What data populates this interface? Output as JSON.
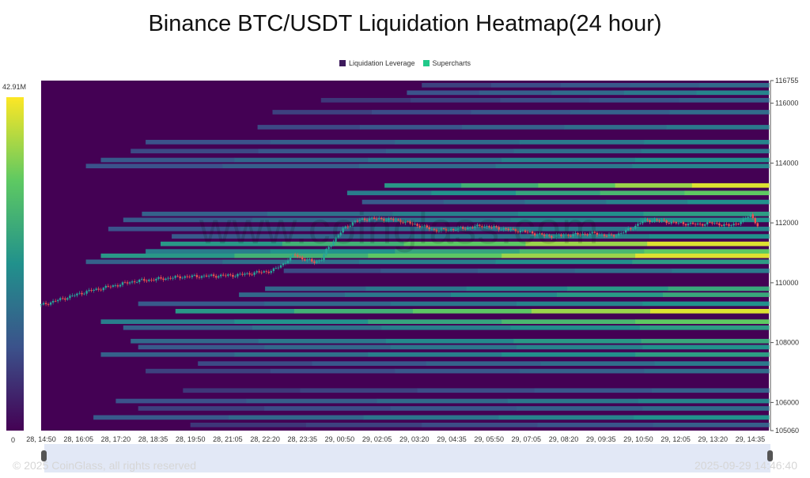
{
  "chart_data": {
    "type": "heatmap",
    "title": "Binance BTC/USDT Liquidation Heatmap(24 hour)",
    "legend": [
      {
        "label": "Liquidation Leverage",
        "color": "#3d1a5c"
      },
      {
        "label": "Supercharts",
        "color": "#21c98a"
      }
    ],
    "colorbar": {
      "max_label": "42.91M",
      "min_label": "0"
    },
    "background_color": "#440154",
    "y_ticks": [
      116755,
      116000,
      114000,
      112000,
      110000,
      108000,
      106000,
      105060
    ],
    "ylim": [
      105060,
      116755
    ],
    "x_ticks": [
      "28, 14:50",
      "28, 16:05",
      "28, 17:20",
      "28, 18:35",
      "28, 19:50",
      "28, 21:05",
      "28, 22:20",
      "28, 23:35",
      "29, 00:50",
      "29, 02:05",
      "29, 03:20",
      "29, 04:35",
      "29, 05:50",
      "29, 07:05",
      "29, 08:20",
      "29, 09:35",
      "29, 10:50",
      "29, 12:05",
      "29, 13:20",
      "29, 14:35"
    ],
    "heat_bands": [
      {
        "price": 116600,
        "start": 10.2,
        "intensity": 0.35
      },
      {
        "price": 116350,
        "start": 9.8,
        "intensity": 0.45
      },
      {
        "price": 116100,
        "start": 7.5,
        "intensity": 0.3
      },
      {
        "price": 115700,
        "start": 6.2,
        "intensity": 0.35
      },
      {
        "price": 115200,
        "start": 5.8,
        "intensity": 0.4
      },
      {
        "price": 114700,
        "start": 2.8,
        "intensity": 0.45
      },
      {
        "price": 114400,
        "start": 2.4,
        "intensity": 0.4
      },
      {
        "price": 114100,
        "start": 1.6,
        "intensity": 0.5
      },
      {
        "price": 113900,
        "start": 1.2,
        "intensity": 0.45
      },
      {
        "price": 113250,
        "start": 9.2,
        "intensity": 0.95
      },
      {
        "price": 113000,
        "start": 8.2,
        "intensity": 0.75
      },
      {
        "price": 112700,
        "start": 8.6,
        "intensity": 0.5
      },
      {
        "price": 112300,
        "start": 2.7,
        "intensity": 0.55
      },
      {
        "price": 112100,
        "start": 2.2,
        "intensity": 0.5
      },
      {
        "price": 111800,
        "start": 1.8,
        "intensity": 0.45
      },
      {
        "price": 111550,
        "start": 3.5,
        "intensity": 0.5
      },
      {
        "price": 111300,
        "start": 3.2,
        "intensity": 0.95
      },
      {
        "price": 111050,
        "start": 2.8,
        "intensity": 0.75
      },
      {
        "price": 110900,
        "start": 1.6,
        "intensity": 0.95
      },
      {
        "price": 110700,
        "start": 1.2,
        "intensity": 0.55
      },
      {
        "price": 110400,
        "start": 6.5,
        "intensity": 0.4
      },
      {
        "price": 109800,
        "start": 6.0,
        "intensity": 0.6
      },
      {
        "price": 109600,
        "start": 5.3,
        "intensity": 0.6
      },
      {
        "price": 109300,
        "start": 2.6,
        "intensity": 0.5
      },
      {
        "price": 109050,
        "start": 3.6,
        "intensity": 0.95
      },
      {
        "price": 108700,
        "start": 1.6,
        "intensity": 0.75
      },
      {
        "price": 108500,
        "start": 2.2,
        "intensity": 0.55
      },
      {
        "price": 108050,
        "start": 2.4,
        "intensity": 0.6
      },
      {
        "price": 107850,
        "start": 2.6,
        "intensity": 0.5
      },
      {
        "price": 107600,
        "start": 1.6,
        "intensity": 0.55
      },
      {
        "price": 107300,
        "start": 4.2,
        "intensity": 0.4
      },
      {
        "price": 107050,
        "start": 2.8,
        "intensity": 0.35
      },
      {
        "price": 106400,
        "start": 3.8,
        "intensity": 0.3
      },
      {
        "price": 106050,
        "start": 2.0,
        "intensity": 0.45
      },
      {
        "price": 105800,
        "start": 2.6,
        "intensity": 0.35
      },
      {
        "price": 105500,
        "start": 1.4,
        "intensity": 0.5
      },
      {
        "price": 105250,
        "start": 4.0,
        "intensity": 0.3
      }
    ],
    "price_path": [
      [
        0,
        109250
      ],
      [
        1.2,
        109700
      ],
      [
        2.5,
        110050
      ],
      [
        3.8,
        110200
      ],
      [
        5.2,
        110250
      ],
      [
        6.2,
        110400
      ],
      [
        6.5,
        110650
      ],
      [
        6.8,
        110950
      ],
      [
        7.0,
        110800
      ],
      [
        7.3,
        110700
      ],
      [
        7.5,
        110750
      ],
      [
        7.6,
        111000
      ],
      [
        7.8,
        111350
      ],
      [
        8.1,
        111800
      ],
      [
        8.4,
        112050
      ],
      [
        8.8,
        112150
      ],
      [
        9.5,
        112100
      ],
      [
        10.0,
        111950
      ],
      [
        10.6,
        111750
      ],
      [
        11.2,
        111800
      ],
      [
        11.8,
        111900
      ],
      [
        12.4,
        111800
      ],
      [
        13.0,
        111700
      ],
      [
        13.6,
        111550
      ],
      [
        14.2,
        111600
      ],
      [
        14.8,
        111650
      ],
      [
        15.3,
        111550
      ],
      [
        15.8,
        111800
      ],
      [
        16.1,
        112050
      ],
      [
        16.4,
        112100
      ],
      [
        17.0,
        112000
      ],
      [
        17.6,
        111950
      ],
      [
        18.0,
        112000
      ],
      [
        18.4,
        111900
      ],
      [
        18.8,
        112050
      ],
      [
        19.0,
        112300
      ],
      [
        19.2,
        111900
      ]
    ]
  },
  "watermark": "www.coinglass.com",
  "footer": {
    "copyright": "© 2025 CoinGlass, all rights reserved",
    "timestamp": "2025-09-29 14:46:40"
  }
}
